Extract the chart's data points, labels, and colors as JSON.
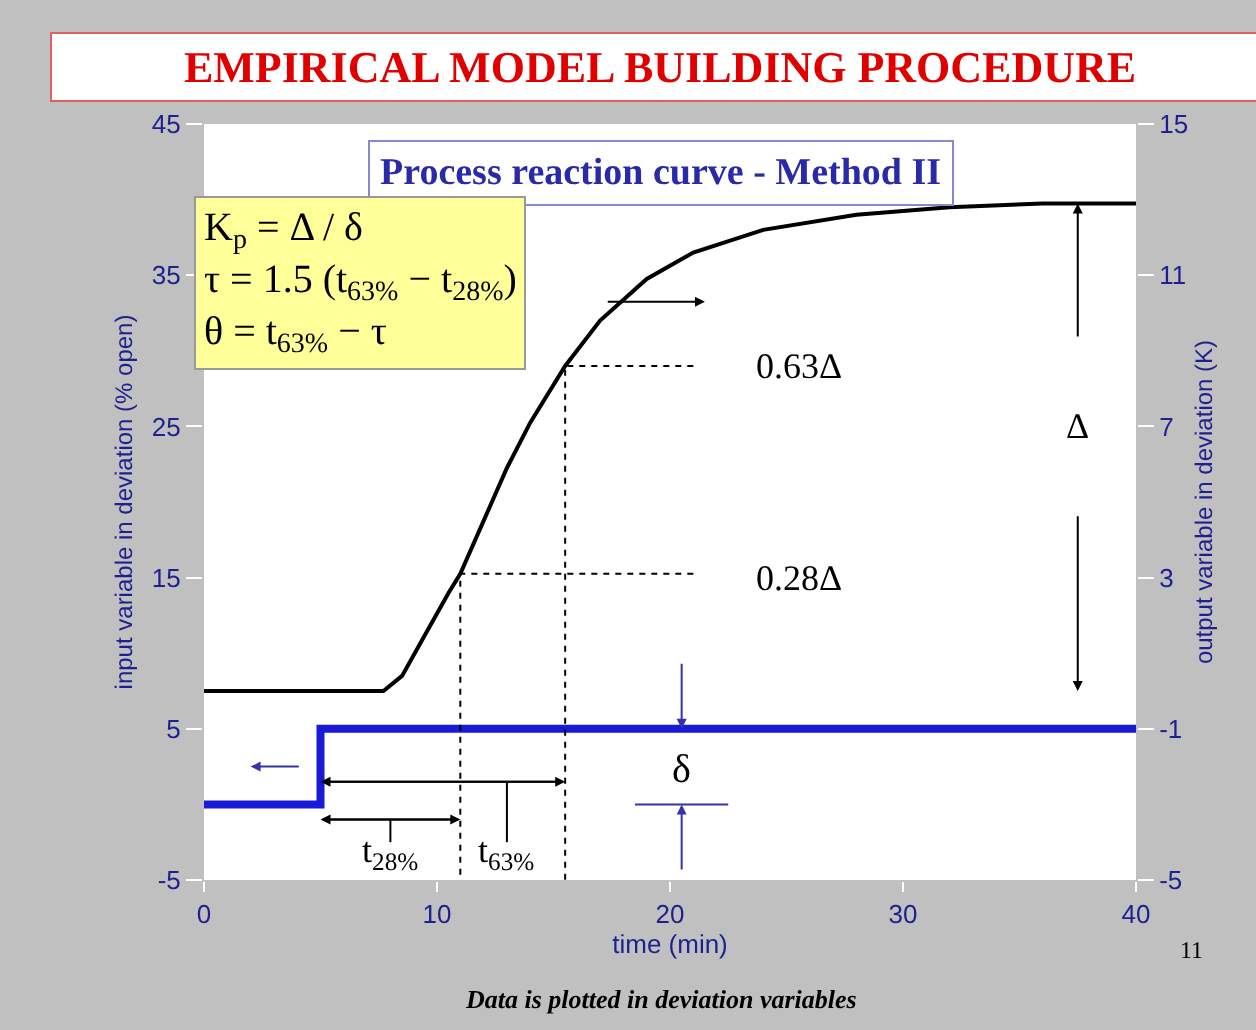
{
  "chart_data": {
    "type": "line",
    "title": "EMPIRICAL MODEL BUILDING PROCEDURE",
    "subtitle": "Process reaction curve - Method II",
    "xlabel": "time (min)",
    "ylabel": "input variable in deviation (% open)",
    "y2label": "output variable in deviation (K)",
    "xlim": [
      0,
      40
    ],
    "xticks": [
      0,
      10,
      20,
      30,
      40
    ],
    "ylim": [
      -5,
      45
    ],
    "yticks": [
      -5,
      5,
      15,
      25,
      35,
      45
    ],
    "y2lim": [
      -5,
      15
    ],
    "y2ticks": [
      -5,
      -1,
      3,
      7,
      11,
      15
    ],
    "marker": "none",
    "series": [
      {
        "type": "step",
        "color": "#1a1ad6",
        "x": [
          0,
          5,
          40
        ],
        "values": [
          0,
          5,
          5
        ]
      },
      {
        "color": "#000000",
        "axis": "y2",
        "x": [
          0,
          7.7,
          8.5,
          9.5,
          10.5,
          11,
          12,
          13,
          14,
          15.5,
          17,
          19,
          21,
          24,
          28,
          32,
          36,
          40
        ],
        "values": [
          0,
          0,
          0.4,
          1.5,
          2.6,
          3.1,
          4.5,
          5.9,
          7.1,
          8.6,
          9.8,
          10.9,
          11.6,
          12.2,
          12.6,
          12.8,
          12.9,
          12.9
        ]
      },
      {
        "color": "#000000",
        "axis": "y2",
        "line_style": "dotted",
        "x": [
          21,
          11,
          11
        ],
        "values": [
          3.1,
          3.1,
          -5
        ]
      },
      {
        "color": "#000000",
        "axis": "y2",
        "line_style": "dotted",
        "x": [
          21,
          15.5,
          15.5
        ],
        "values": [
          8.6,
          8.6,
          -5
        ]
      }
    ],
    "annotations": [
      "K$_{p}$ = Δ / δ\nτ = 1.5 (t$_{63%}$ − t$_{28%}$)\nθ = t$_{63%}$ − τ",
      "0.63Δ",
      "0.28Δ",
      "Δ",
      "δ",
      {
        "text": "t$_{28%}$",
        "x": 11,
        "y": -1
      },
      {
        "text": "t$_{63%}$",
        "x": 15.5,
        "y": 1.5
      },
      "Data is plotted in deviation variables",
      "11"
    ]
  }
}
